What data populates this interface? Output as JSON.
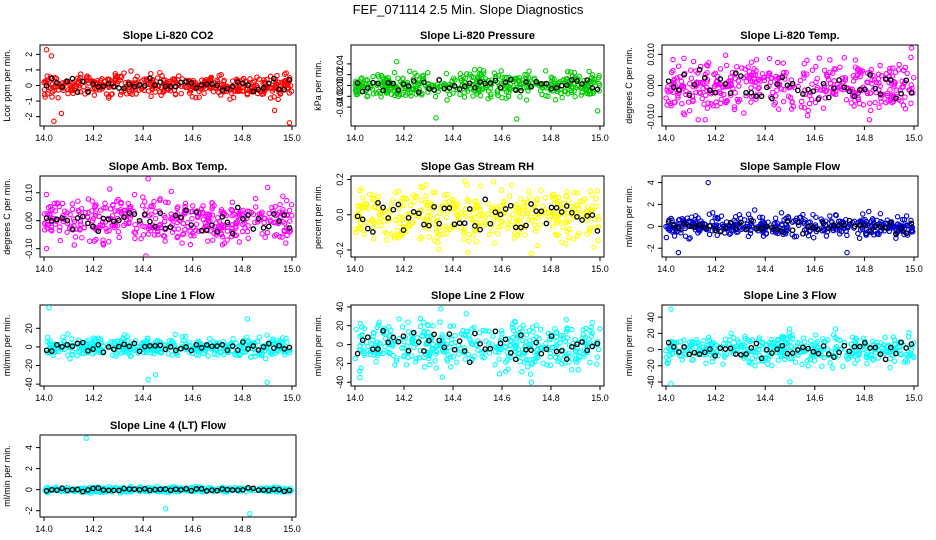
{
  "title": "FEF_071114  2.5 Min. Slope Diagnostics",
  "xticks": [
    "14.0",
    "14.2",
    "14.4",
    "14.6",
    "14.8",
    "15.0"
  ],
  "chart_data": [
    {
      "type": "scatter",
      "title": "Slope Li-820 CO2",
      "ylabel": "Lcor ppm per min.",
      "xlim": [
        14.0,
        15.0
      ],
      "ylim": [
        -2.6,
        2.6
      ],
      "yticks": [
        -2,
        -1,
        0,
        1,
        2
      ],
      "ytick_labels": [
        "-2",
        "-1",
        "0",
        "1",
        "2"
      ],
      "color": "#ff0000",
      "spread": 0.35,
      "outliers": [
        [
          14.01,
          2.3
        ],
        [
          14.03,
          1.9
        ],
        [
          14.07,
          -1.8
        ],
        [
          14.99,
          -2.4
        ],
        [
          14.04,
          -2.3
        ],
        [
          14.93,
          -1.6
        ]
      ]
    },
    {
      "type": "scatter",
      "title": "Slope Li-820 Pressure",
      "ylabel": "kPa per min.",
      "xlim": [
        14.0,
        15.0
      ],
      "ylim": [
        -0.075,
        0.075
      ],
      "yticks": [
        -0.04,
        -0.02,
        0.0,
        0.02,
        0.04
      ],
      "ytick_labels": [
        "-0.04",
        "-0.02",
        "0.00",
        "0.02",
        "0.04"
      ],
      "color": "#00cc00",
      "spread": 0.012,
      "outliers": [
        [
          14.17,
          0.044
        ],
        [
          14.33,
          -0.06
        ],
        [
          14.66,
          -0.062
        ],
        [
          14.99,
          -0.047
        ]
      ]
    },
    {
      "type": "scatter",
      "title": "Slope Li-820 Temp.",
      "ylabel": "degrees C per min.",
      "xlim": [
        14.0,
        15.0
      ],
      "ylim": [
        -0.013,
        0.013
      ],
      "yticks": [
        -0.01,
        0.0,
        0.01
      ],
      "ytick_labels": [
        "-0.010",
        "0.000",
        "0.010"
      ],
      "color": "#ff00ff",
      "spread": 0.004,
      "outliers": [
        [
          14.99,
          0.012
        ],
        [
          14.13,
          -0.011
        ],
        [
          14.82,
          -0.011
        ]
      ]
    },
    {
      "type": "scatter",
      "title": "Slope Amb. Box Temp.",
      "ylabel": "degrees C per min.",
      "xlim": [
        14.0,
        15.0
      ],
      "ylim": [
        -0.13,
        0.16
      ],
      "yticks": [
        -0.1,
        0.0,
        0.1
      ],
      "ytick_labels": [
        "-0.10",
        "0.00",
        "0.10"
      ],
      "color": "#ff00ff",
      "spread": 0.04,
      "outliers": [
        [
          14.42,
          0.15
        ],
        [
          14.01,
          -0.1
        ]
      ]
    },
    {
      "type": "scatter",
      "title": "Slope Gas Stream RH",
      "ylabel": "percent per min.",
      "xlim": [
        14.0,
        15.0
      ],
      "ylim": [
        -0.24,
        0.22
      ],
      "yticks": [
        -0.2,
        0.0,
        0.2
      ],
      "ytick_labels": [
        "-0.2",
        "0.0",
        "0.2"
      ],
      "color": "#ffff00",
      "spread": 0.08,
      "outliers": [
        [
          14.45,
          0.19
        ],
        [
          14.72,
          -0.22
        ]
      ]
    },
    {
      "type": "scatter",
      "title": "Slope Sample Flow",
      "ylabel": "ml/min per min.",
      "xlim": [
        14.0,
        15.0
      ],
      "ylim": [
        -2.8,
        4.6
      ],
      "yticks": [
        -2,
        0,
        2,
        4
      ],
      "ytick_labels": [
        "-2",
        "0",
        "2",
        "4"
      ],
      "color": "#0000cc",
      "spread": 0.5,
      "outliers": [
        [
          14.17,
          4.0
        ],
        [
          14.05,
          -2.4
        ],
        [
          14.73,
          -2.4
        ]
      ]
    },
    {
      "type": "scatter",
      "title": "Slope Line 1 Flow",
      "ylabel": "ml/min per min.",
      "xlim": [
        14.0,
        15.0
      ],
      "ylim": [
        -42,
        45
      ],
      "yticks": [
        -40,
        -20,
        0,
        20
      ],
      "ytick_labels": [
        "-40",
        "-20",
        "0",
        "20"
      ],
      "color": "#00ffff",
      "spread": 5,
      "outliers": [
        [
          14.02,
          42
        ],
        [
          14.45,
          -30
        ],
        [
          14.42,
          -35
        ],
        [
          14.82,
          30
        ],
        [
          14.9,
          -38
        ]
      ]
    },
    {
      "type": "scatter",
      "title": "Slope Line 2 Flow",
      "ylabel": "ml/min per min.",
      "xlim": [
        14.0,
        15.0
      ],
      "ylim": [
        -44,
        42
      ],
      "yticks": [
        -40,
        -20,
        0,
        20,
        40
      ],
      "ytick_labels": [
        "-40",
        "-20",
        "0",
        "20",
        "40"
      ],
      "color": "#00ffff",
      "spread": 12,
      "outliers": [
        [
          14.35,
          38
        ],
        [
          14.72,
          -40
        ],
        [
          14.02,
          -35
        ]
      ]
    },
    {
      "type": "scatter",
      "title": "Slope Line 3 Flow",
      "ylabel": "ml/min per min.",
      "xlim": [
        14.0,
        15.0
      ],
      "ylim": [
        -45,
        55
      ],
      "yticks": [
        -40,
        -20,
        0,
        20,
        40
      ],
      "ytick_labels": [
        "-40",
        "-20",
        "0",
        "20",
        "40"
      ],
      "color": "#00ffff",
      "spread": 9,
      "outliers": [
        [
          14.02,
          50
        ],
        [
          14.5,
          -40
        ],
        [
          14.02,
          -42
        ]
      ]
    },
    {
      "type": "scatter",
      "title": "Slope Line 4 (LT) Flow",
      "ylabel": "ml/min per min.",
      "xlim": [
        14.0,
        15.0
      ],
      "ylim": [
        -2.6,
        5.2
      ],
      "yticks": [
        -2,
        0,
        2,
        4
      ],
      "ytick_labels": [
        "-2",
        "0",
        "2",
        "4"
      ],
      "color": "#00ffff",
      "spread": 0.12,
      "outliers": [
        [
          14.17,
          4.9
        ],
        [
          14.49,
          -1.8
        ],
        [
          14.83,
          -2.3
        ]
      ]
    }
  ]
}
